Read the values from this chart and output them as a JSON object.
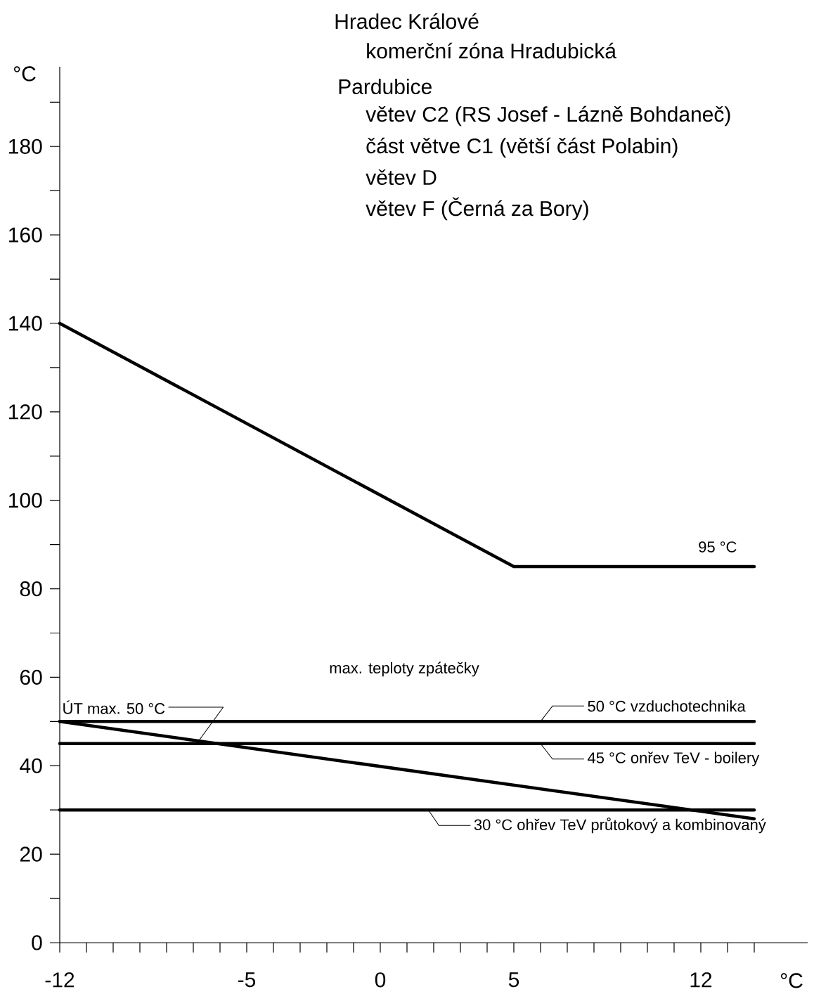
{
  "chart_data": {
    "type": "line",
    "title": "Hradec Králové",
    "xlabel": "°C",
    "ylabel": "°C",
    "xlim": [
      -12,
      16
    ],
    "ylim": [
      0,
      198
    ],
    "xticks": [
      -12,
      {
        "value": -11,
        "label": null
      },
      {
        "value": -10,
        "label": null
      },
      {
        "value": -9,
        "label": null
      },
      {
        "value": -8,
        "label": null
      },
      {
        "value": -7,
        "label": null
      },
      {
        "value": -6,
        "label": null
      },
      -5,
      {
        "value": -4,
        "label": null
      },
      {
        "value": -3,
        "label": null
      },
      {
        "value": -2,
        "label": null
      },
      {
        "value": -1,
        "label": null
      },
      0,
      {
        "value": 1,
        "label": null
      },
      {
        "value": 2,
        "label": null
      },
      {
        "value": 3,
        "label": null
      },
      {
        "value": 4,
        "label": null
      },
      5,
      {
        "value": 6,
        "label": null
      },
      {
        "value": 7,
        "label": null
      },
      {
        "value": 8,
        "label": null
      },
      {
        "value": 9,
        "label": null
      },
      {
        "value": 10,
        "label": null
      },
      {
        "value": 11,
        "label": null
      },
      12,
      {
        "value": 13,
        "label": null
      },
      {
        "value": 14,
        "label": null
      }
    ],
    "yticks": [
      0,
      {
        "value": 10,
        "label": null
      },
      20,
      {
        "value": 30,
        "label": null
      },
      40,
      {
        "value": 50,
        "label": null
      },
      60,
      {
        "value": 70,
        "label": null
      },
      80,
      {
        "value": 90,
        "label": null
      },
      100,
      {
        "value": 110,
        "label": null
      },
      120,
      {
        "value": 130,
        "label": null
      },
      140,
      {
        "value": 150,
        "label": null
      },
      160,
      {
        "value": 170,
        "label": null
      },
      180,
      {
        "value": 190,
        "label": null
      }
    ],
    "marker": "none",
    "line_style": "solid",
    "series": [
      {
        "color": "#000000",
        "x": [
          -12,
          5,
          14
        ],
        "values": [
          140,
          85,
          85
        ]
      },
      {
        "color": "#000000",
        "x": [
          -12,
          14
        ],
        "values": [
          50,
          50
        ]
      },
      {
        "color": "#000000",
        "x": [
          -12,
          14
        ],
        "values": [
          45,
          45
        ]
      },
      {
        "color": "#000000",
        "x": [
          -12,
          14
        ],
        "values": [
          30,
          30
        ]
      },
      {
        "color": "#000000",
        "x": [
          -12,
          14
        ],
        "values": [
          50,
          28
        ]
      }
    ],
    "annotations": [
      "komerční zóna Hradubická",
      "Pardubice",
      "větev C2 (RS Josef - Lázně Bohdaneč)",
      "část větve C1 (větší část Polabin)",
      "větev D",
      "větev F (Černá za Bory)",
      "max. teploty zpátečky",
      "95 °C",
      {
        "text": "ÚT max. 50 °C",
        "x": -6.8,
        "y": 45.6
      },
      {
        "text": "50 °C vzduchotechnika",
        "x": 6,
        "y": 50
      },
      {
        "text": "45 °C onřev TeV - boilery",
        "x": 6,
        "y": 45
      },
      {
        "text": "30 °C ohřev TeV průtokový a kombinovaný",
        "x": 1.8,
        "y": 30
      }
    ]
  }
}
